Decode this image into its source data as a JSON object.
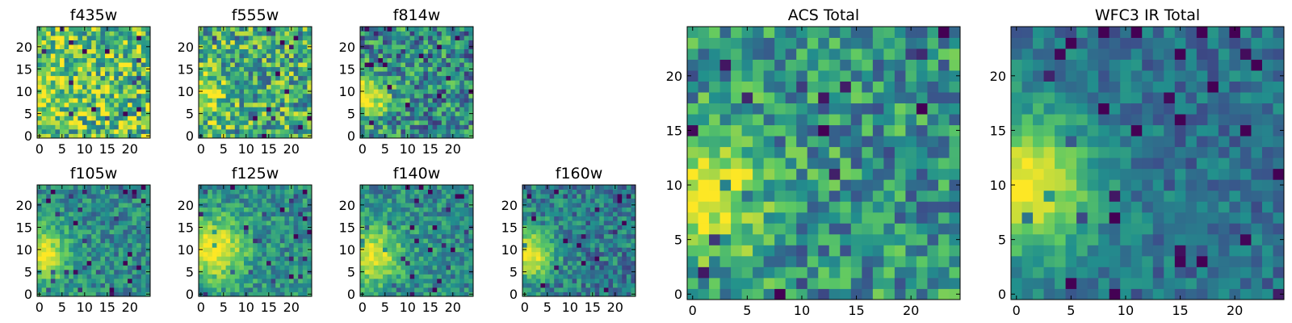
{
  "figure": {
    "colormap": "viridis",
    "colormap_stops": [
      "#440154",
      "#3b528b",
      "#21908d",
      "#5dc963",
      "#fde725"
    ],
    "frame_color": "#000000"
  },
  "chart_data": [
    {
      "type": "heatmap",
      "title": "f435w",
      "grid_size": 25,
      "xlim": [
        0,
        24
      ],
      "ylim": [
        0,
        24
      ],
      "xticks": [
        0,
        5,
        10,
        15,
        20
      ],
      "yticks": [
        0,
        5,
        10,
        15,
        20
      ],
      "profile": {
        "base": 0.72,
        "peak": 0.95,
        "peak_x": 0,
        "peak_y": 10,
        "spread": 3.5,
        "noise": 0.35
      }
    },
    {
      "type": "heatmap",
      "title": "f555w",
      "grid_size": 25,
      "xlim": [
        0,
        24
      ],
      "ylim": [
        0,
        24
      ],
      "xticks": [
        0,
        5,
        10,
        15,
        20
      ],
      "yticks": [
        0,
        5,
        10,
        15,
        20
      ],
      "profile": {
        "base": 0.62,
        "peak": 0.97,
        "peak_x": 0,
        "peak_y": 9,
        "spread": 3.5,
        "noise": 0.35
      }
    },
    {
      "type": "heatmap",
      "title": "f814w",
      "grid_size": 25,
      "xlim": [
        0,
        24
      ],
      "ylim": [
        0,
        24
      ],
      "xticks": [
        0,
        5,
        10,
        15,
        20
      ],
      "yticks": [
        0,
        5,
        10,
        15,
        20
      ],
      "profile": {
        "base": 0.48,
        "peak": 1.0,
        "peak_x": 1,
        "peak_y": 9,
        "spread": 3.5,
        "noise": 0.32
      }
    },
    {
      "type": "heatmap",
      "title": "f105w",
      "grid_size": 25,
      "xlim": [
        0,
        24
      ],
      "ylim": [
        0,
        24
      ],
      "xticks": [
        0,
        5,
        10,
        15,
        20
      ],
      "yticks": [
        0,
        5,
        10,
        15,
        20
      ],
      "profile": {
        "base": 0.48,
        "peak": 1.0,
        "peak_x": 0,
        "peak_y": 9,
        "spread": 4.5,
        "noise": 0.2
      }
    },
    {
      "type": "heatmap",
      "title": "f125w",
      "grid_size": 25,
      "xlim": [
        0,
        24
      ],
      "ylim": [
        0,
        24
      ],
      "xticks": [
        0,
        5,
        10,
        15,
        20
      ],
      "yticks": [
        0,
        5,
        10,
        15,
        20
      ],
      "profile": {
        "base": 0.5,
        "peak": 1.0,
        "peak_x": 3,
        "peak_y": 10,
        "spread": 5,
        "noise": 0.2
      }
    },
    {
      "type": "heatmap",
      "title": "f140w",
      "grid_size": 25,
      "xlim": [
        0,
        24
      ],
      "ylim": [
        0,
        24
      ],
      "xticks": [
        0,
        5,
        10,
        15,
        20
      ],
      "yticks": [
        0,
        5,
        10,
        15,
        20
      ],
      "profile": {
        "base": 0.48,
        "peak": 0.95,
        "peak_x": 2,
        "peak_y": 9,
        "spread": 5,
        "noise": 0.2
      }
    },
    {
      "type": "heatmap",
      "title": "f160w",
      "grid_size": 25,
      "xlim": [
        0,
        24
      ],
      "ylim": [
        0,
        24
      ],
      "xticks": [
        0,
        5,
        10,
        15,
        20
      ],
      "yticks": [
        0,
        5,
        10,
        15,
        20
      ],
      "profile": {
        "base": 0.42,
        "peak": 1.0,
        "peak_x": 1,
        "peak_y": 9,
        "spread": 4,
        "noise": 0.22
      }
    },
    {
      "type": "heatmap",
      "title": "ACS Total",
      "grid_size": 25,
      "xlim": [
        0,
        24
      ],
      "ylim": [
        0,
        24
      ],
      "xticks": [
        0,
        5,
        10,
        15,
        20
      ],
      "yticks": [
        0,
        5,
        10,
        15,
        20
      ],
      "profile": {
        "base": 0.52,
        "peak": 1.0,
        "peak_x": 1,
        "peak_y": 9,
        "spread": 4,
        "noise": 0.28
      }
    },
    {
      "type": "heatmap",
      "title": "WFC3 IR Total",
      "grid_size": 25,
      "xlim": [
        0,
        24
      ],
      "ylim": [
        0,
        24
      ],
      "xticks": [
        0,
        5,
        10,
        15,
        20
      ],
      "yticks": [
        0,
        5,
        10,
        15,
        20
      ],
      "profile": {
        "base": 0.38,
        "peak": 1.0,
        "peak_x": 1,
        "peak_y": 10,
        "spread": 4.5,
        "noise": 0.16
      }
    }
  ]
}
